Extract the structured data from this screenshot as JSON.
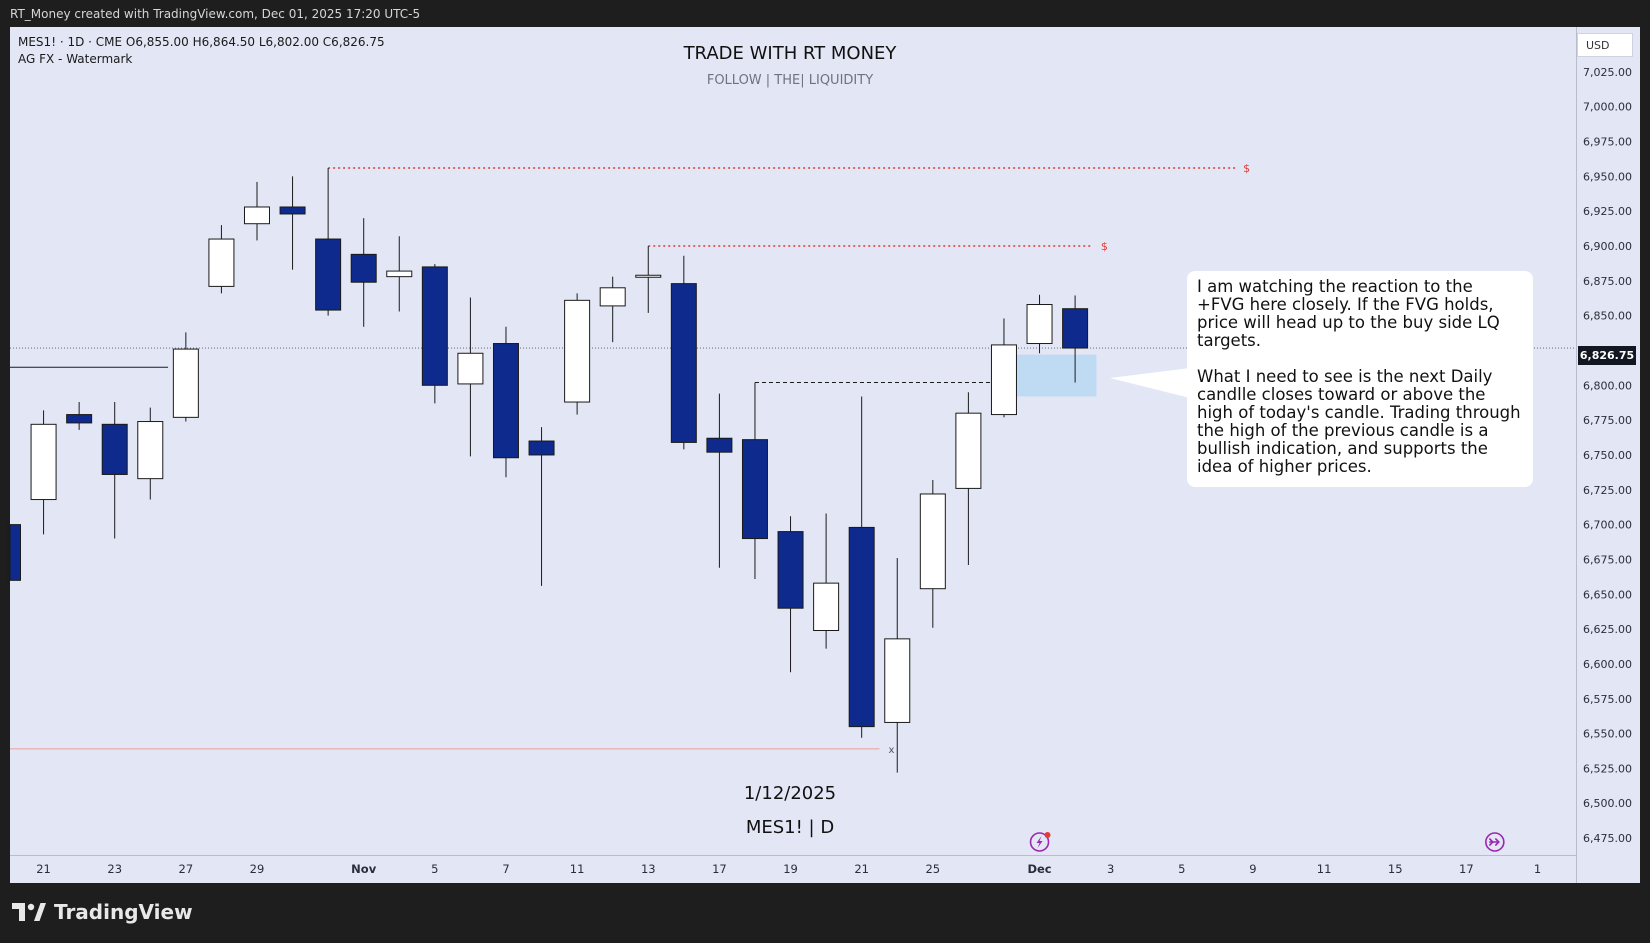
{
  "header": {
    "attribution": "RT_Money created with TradingView.com, Dec 01, 2025 17:20 UTC-5"
  },
  "chart_info": {
    "symbol_line": "MES1! · 1D · CME  O6,855.00  H6,864.50  L6,802.00  C6,826.75",
    "indicator": "AG FX - Watermark"
  },
  "watermark": {
    "title": "TRADE WITH RT MONEY",
    "subtitle": "FOLLOW   |   THE|   LIQUIDITY",
    "date": "1/12/2025",
    "symbol": "MES1! | D"
  },
  "currency": "USD",
  "last_price_label": "6,826.75",
  "note": {
    "para1": "I am watching the reaction to the +FVG here closely.  If the FVG holds, price will head up to the buy side LQ targets.",
    "para2": "What I need to see is the next Daily candlle closes toward or above the high of today's candle.  Trading through the high of the previous candle is a bullish indication, and supports the idea of higher prices."
  },
  "branding": {
    "logo_text": "TradingView"
  },
  "colors": {
    "background": "#e3e7f5",
    "bear_candle": "#0d2a8c",
    "bull_candle": "#ffffff",
    "liquidity_line": "#e53935",
    "fvg_zone": "#b9d7f2",
    "icon_accent": "#9c27b0"
  },
  "chart_data": {
    "type": "candlestick",
    "ylim": [
      6465,
      7045
    ],
    "yticks": [
      7025,
      7000,
      6975,
      6950,
      6925,
      6900,
      6875,
      6850,
      6825,
      6800,
      6775,
      6750,
      6725,
      6700,
      6675,
      6650,
      6625,
      6600,
      6575,
      6550,
      6525,
      6500,
      6475
    ],
    "ytick_labels": [
      "7,025.00",
      "7,000.00",
      "6,975.00",
      "6,950.00",
      "6,925.00",
      "6,900.00",
      "6,875.00",
      "6,850.00",
      "6,825.00",
      "6,800.00",
      "6,775.00",
      "6,750.00",
      "6,725.00",
      "6,700.00",
      "6,675.00",
      "6,650.00",
      "6,625.00",
      "6,600.00",
      "6,575.00",
      "6,550.00",
      "6,525.00",
      "6,500.00",
      "6,475.00"
    ],
    "xticks": [
      {
        "label": "7",
        "slot": -1
      },
      {
        "label": "21",
        "slot": 1
      },
      {
        "label": "23",
        "slot": 3
      },
      {
        "label": "27",
        "slot": 5
      },
      {
        "label": "29",
        "slot": 7
      },
      {
        "label": "Nov",
        "slot": 10
      },
      {
        "label": "5",
        "slot": 12
      },
      {
        "label": "7",
        "slot": 14
      },
      {
        "label": "11",
        "slot": 16
      },
      {
        "label": "13",
        "slot": 18
      },
      {
        "label": "17",
        "slot": 20
      },
      {
        "label": "19",
        "slot": 22
      },
      {
        "label": "21",
        "slot": 24
      },
      {
        "label": "25",
        "slot": 26
      },
      {
        "label": "Dec",
        "slot": 29
      },
      {
        "label": "3",
        "slot": 31
      },
      {
        "label": "5",
        "slot": 33
      },
      {
        "label": "9",
        "slot": 35
      },
      {
        "label": "11",
        "slot": 37
      },
      {
        "label": "15",
        "slot": 39
      },
      {
        "label": "17",
        "slot": 41
      },
      {
        "label": "1",
        "slot": 43
      }
    ],
    "candles": [
      {
        "slot": 0,
        "o": 6700,
        "h": 6705,
        "l": 6656,
        "c": 6660
      },
      {
        "slot": 1,
        "o": 6718,
        "h": 6782,
        "l": 6693,
        "c": 6772
      },
      {
        "slot": 2,
        "o": 6779,
        "h": 6788,
        "l": 6768,
        "c": 6773
      },
      {
        "slot": 3,
        "o": 6772,
        "h": 6788,
        "l": 6690,
        "c": 6736
      },
      {
        "slot": 4,
        "o": 6733,
        "h": 6784,
        "l": 6718,
        "c": 6774
      },
      {
        "slot": 5,
        "o": 6777,
        "h": 6838,
        "l": 6774,
        "c": 6826
      },
      {
        "slot": 6,
        "o": 6871,
        "h": 6915,
        "l": 6866,
        "c": 6905
      },
      {
        "slot": 7,
        "o": 6916,
        "h": 6946,
        "l": 6904,
        "c": 6928
      },
      {
        "slot": 8,
        "o": 6928,
        "h": 6950,
        "l": 6883,
        "c": 6923
      },
      {
        "slot": 9,
        "o": 6905,
        "h": 6956,
        "l": 6850,
        "c": 6854
      },
      {
        "slot": 10,
        "o": 6894,
        "h": 6920,
        "l": 6842,
        "c": 6874
      },
      {
        "slot": 11,
        "o": 6878,
        "h": 6907,
        "l": 6853,
        "c": 6882
      },
      {
        "slot": 12,
        "o": 6885,
        "h": 6887,
        "l": 6787,
        "c": 6800
      },
      {
        "slot": 13,
        "o": 6801,
        "h": 6863,
        "l": 6749,
        "c": 6823
      },
      {
        "slot": 14,
        "o": 6830,
        "h": 6842,
        "l": 6734,
        "c": 6748
      },
      {
        "slot": 15,
        "o": 6760,
        "h": 6770,
        "l": 6656,
        "c": 6750
      },
      {
        "slot": 16,
        "o": 6788,
        "h": 6866,
        "l": 6779,
        "c": 6861
      },
      {
        "slot": 17,
        "o": 6857,
        "h": 6878,
        "l": 6831,
        "c": 6870
      },
      {
        "slot": 18,
        "o": 6879,
        "h": 6900,
        "l": 6852,
        "c": 6879
      },
      {
        "slot": 19,
        "o": 6873,
        "h": 6893,
        "l": 6754,
        "c": 6759
      },
      {
        "slot": 20,
        "o": 6762,
        "h": 6794,
        "l": 6669,
        "c": 6752
      },
      {
        "slot": 21,
        "o": 6761,
        "h": 6802,
        "l": 6661,
        "c": 6690
      },
      {
        "slot": 22,
        "o": 6695,
        "h": 6706,
        "l": 6594,
        "c": 6640
      },
      {
        "slot": 23,
        "o": 6624,
        "h": 6708,
        "l": 6611,
        "c": 6658
      },
      {
        "slot": 24,
        "o": 6698,
        "h": 6792,
        "l": 6547,
        "c": 6555
      },
      {
        "slot": 25,
        "o": 6558,
        "h": 6676,
        "l": 6522,
        "c": 6618
      },
      {
        "slot": 26,
        "o": 6654,
        "h": 6732,
        "l": 6626,
        "c": 6722
      },
      {
        "slot": 27,
        "o": 6726,
        "h": 6795,
        "l": 6671,
        "c": 6780
      },
      {
        "slot": 28,
        "o": 6779,
        "h": 6848,
        "l": 6777,
        "c": 6829
      },
      {
        "slot": 29,
        "o": 6830,
        "h": 6865,
        "l": 6823,
        "c": 6858
      },
      {
        "slot": 30,
        "o": 6855,
        "h": 6864.5,
        "l": 6802,
        "c": 6826.75
      }
    ],
    "levels": [
      {
        "kind": "liquidity",
        "price": 6956,
        "from_slot": 9,
        "to_slot": 34.5,
        "label": "$"
      },
      {
        "kind": "liquidity",
        "price": 6900,
        "from_slot": 18,
        "to_slot": 30.5,
        "label": "$"
      },
      {
        "kind": "sell_side",
        "price": 6539,
        "from_slot": -0.4,
        "to_slot": 24.5,
        "label": "x"
      },
      {
        "kind": "prior_level",
        "price": 6813,
        "from_slot": -0.4,
        "to_slot": 4.5,
        "label": ""
      },
      {
        "kind": "fvg_high_ref",
        "price": 6802,
        "from_slot": 21,
        "to_slot": 28,
        "label": ""
      }
    ],
    "fvg": {
      "top": 6822,
      "bottom": 6792,
      "from_slot": 27.7,
      "to_slot": 30.6
    },
    "last_price": 6826.75,
    "events": [
      {
        "slot": 29.0,
        "icon": "lightning"
      },
      {
        "slot": 41.8,
        "icon": "fast-forward"
      }
    ]
  }
}
